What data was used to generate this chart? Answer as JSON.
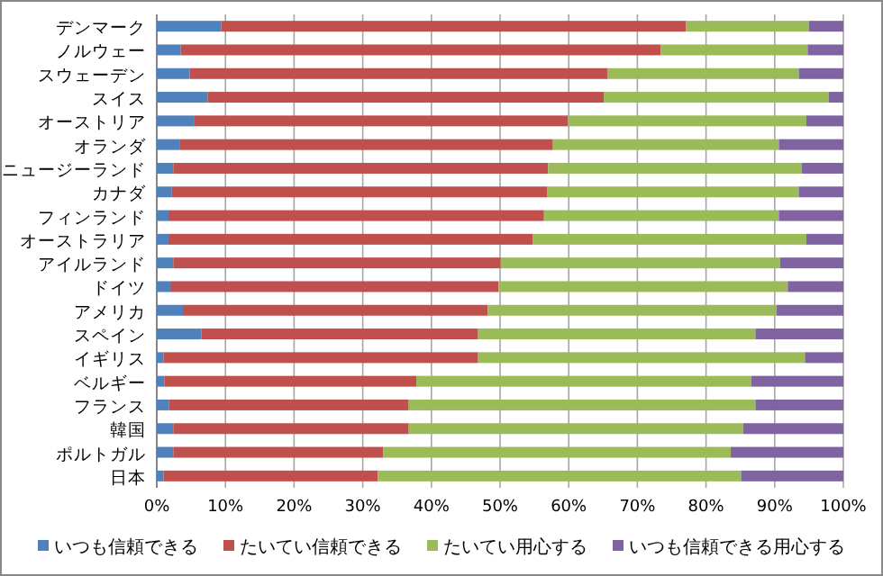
{
  "chart_data": {
    "type": "bar",
    "orientation": "horizontal",
    "stacked": true,
    "categories": [
      "デンマーク",
      "ノルウェー",
      "スウェーデン",
      "スイス",
      "オーストリア",
      "オランダ",
      "ニュージーランド",
      "カナダ",
      "フィンランド",
      "オーストラリア",
      "アイルランド",
      "ドイツ",
      "アメリカ",
      "スペイン",
      "イギリス",
      "ベルギー",
      "フランス",
      "韓国",
      "ポルトガル",
      "日本"
    ],
    "series": [
      {
        "name": "いつも信頼できる",
        "color": "#4f81bd",
        "values": [
          9.4,
          3.5,
          4.8,
          7.4,
          5.5,
          3.3,
          2.4,
          2.2,
          1.7,
          1.7,
          2.4,
          2.1,
          3.8,
          6.5,
          1.0,
          1.1,
          1.8,
          2.4,
          2.4,
          1.0
        ]
      },
      {
        "name": "たいてい信頼できる",
        "color": "#c0504d",
        "values": [
          67.7,
          69.9,
          60.9,
          57.7,
          54.4,
          54.4,
          54.6,
          54.7,
          54.7,
          53.1,
          47.7,
          47.7,
          44.4,
          40.3,
          45.8,
          36.7,
          34.9,
          34.3,
          30.6,
          31.2
        ]
      },
      {
        "name": "たいてい用心する",
        "color": "#9bbb59",
        "values": [
          17.9,
          21.4,
          27.8,
          32.8,
          34.7,
          32.9,
          36.9,
          36.6,
          34.2,
          39.8,
          40.7,
          42.1,
          42.1,
          40.4,
          47.6,
          48.8,
          50.5,
          48.7,
          50.6,
          52.9
        ]
      },
      {
        "name": "いつも信頼できる用心する",
        "color": "#8064a2",
        "values": [
          5.0,
          5.2,
          6.5,
          2.1,
          5.4,
          9.4,
          6.1,
          6.5,
          9.4,
          5.4,
          9.2,
          8.1,
          9.7,
          12.8,
          5.6,
          13.4,
          12.8,
          14.6,
          16.4,
          14.9
        ]
      }
    ],
    "xlim": [
      0,
      100
    ],
    "xticks": [
      {
        "value": 0,
        "label": "0%"
      },
      {
        "value": 10,
        "label": "10%"
      },
      {
        "value": 20,
        "label": "20%"
      },
      {
        "value": 30,
        "label": "30%"
      },
      {
        "value": 40,
        "label": "40%"
      },
      {
        "value": 50,
        "label": "50%"
      },
      {
        "value": 60,
        "label": "60%"
      },
      {
        "value": 70,
        "label": "70%"
      },
      {
        "value": 80,
        "label": "80%"
      },
      {
        "value": 90,
        "label": "90%"
      },
      {
        "value": 100,
        "label": "100%"
      }
    ],
    "grid": "x",
    "legend": "bottom"
  }
}
